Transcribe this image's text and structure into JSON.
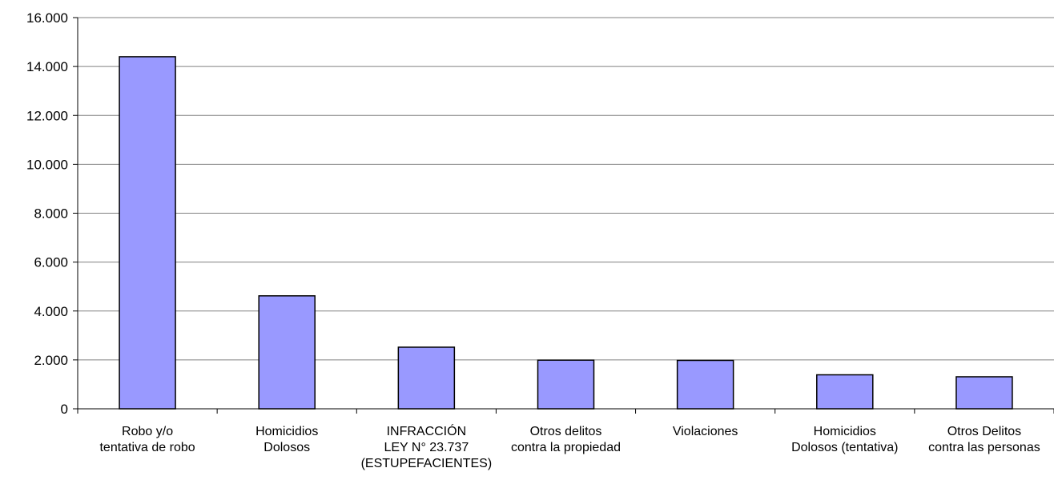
{
  "chart_data": {
    "type": "bar",
    "title": "",
    "xlabel": "",
    "ylabel": "",
    "categories": [
      [
        "Robo y/o",
        "tentativa de robo"
      ],
      [
        "Homicidios",
        "Dolosos"
      ],
      [
        "INFRACCIÓN",
        "LEY N° 23.737",
        "(ESTUPEFACIENTES)"
      ],
      [
        "Otros delitos",
        "contra la propiedad"
      ],
      [
        "Violaciones"
      ],
      [
        "Homicidios",
        "Dolosos (tentativa)"
      ],
      [
        "Otros Delitos",
        "contra las personas"
      ]
    ],
    "values": [
      14400,
      4620,
      2520,
      1990,
      1980,
      1390,
      1310
    ],
    "ylim": [
      0,
      16000
    ],
    "yticks": [
      0,
      2000,
      4000,
      6000,
      8000,
      10000,
      12000,
      14000,
      16000
    ],
    "ytick_labels": [
      "0",
      "2.000",
      "4.000",
      "6.000",
      "8.000",
      "10.000",
      "12.000",
      "14.000",
      "16.000"
    ],
    "grid": true,
    "legend": "none",
    "colors": {
      "bar_fill": "#9999ff",
      "bar_stroke": "#000000",
      "gridline": "#808080",
      "axis": "#000000"
    }
  }
}
